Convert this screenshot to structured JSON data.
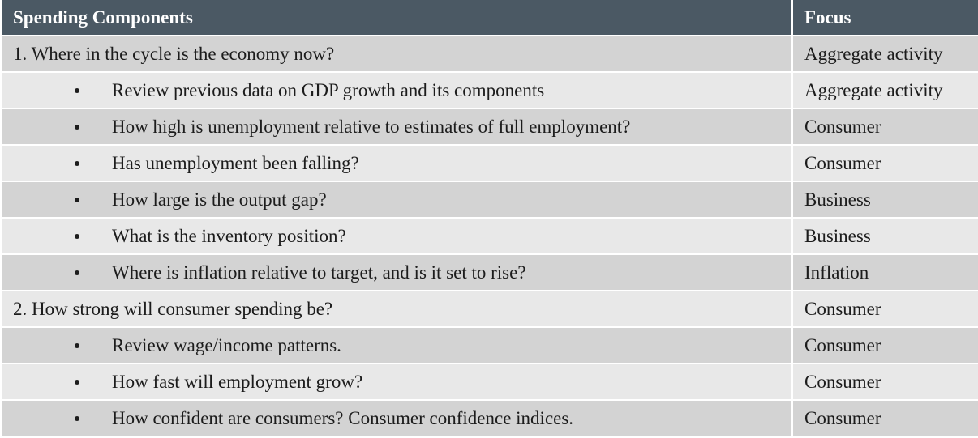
{
  "table": {
    "headers": {
      "component": "Spending Components",
      "focus": "Focus"
    },
    "rows": [
      {
        "component": "1. Where in the cycle is the economy now?",
        "focus": "Aggregate activity",
        "bullet": false
      },
      {
        "component": "Review previous data on GDP growth and its components",
        "focus": "Aggregate activity",
        "bullet": true
      },
      {
        "component": "How high is unemployment relative to estimates of full employment?",
        "focus": "Consumer",
        "bullet": true
      },
      {
        "component": "Has unemployment been falling?",
        "focus": "Consumer",
        "bullet": true
      },
      {
        "component": "How large is the output gap?",
        "focus": "Business",
        "bullet": true
      },
      {
        "component": "What is the inventory position?",
        "focus": "Business",
        "bullet": true
      },
      {
        "component": "Where is inflation relative to target, and is it set to rise?",
        "focus": "Inflation",
        "bullet": true
      },
      {
        "component": "2. How strong will consumer spending be?",
        "focus": "Consumer",
        "bullet": false
      },
      {
        "component": "Review wage/income patterns.",
        "focus": "Consumer",
        "bullet": true
      },
      {
        "component": "How fast will employment grow?",
        "focus": "Consumer",
        "bullet": true
      },
      {
        "component": "How confident are consumers? Consumer confidence indices.",
        "focus": "Consumer",
        "bullet": true
      }
    ]
  },
  "colors": {
    "header_bg": "#4b5964",
    "row_dark": "#d3d3d3",
    "row_light": "#e8e8e8"
  }
}
